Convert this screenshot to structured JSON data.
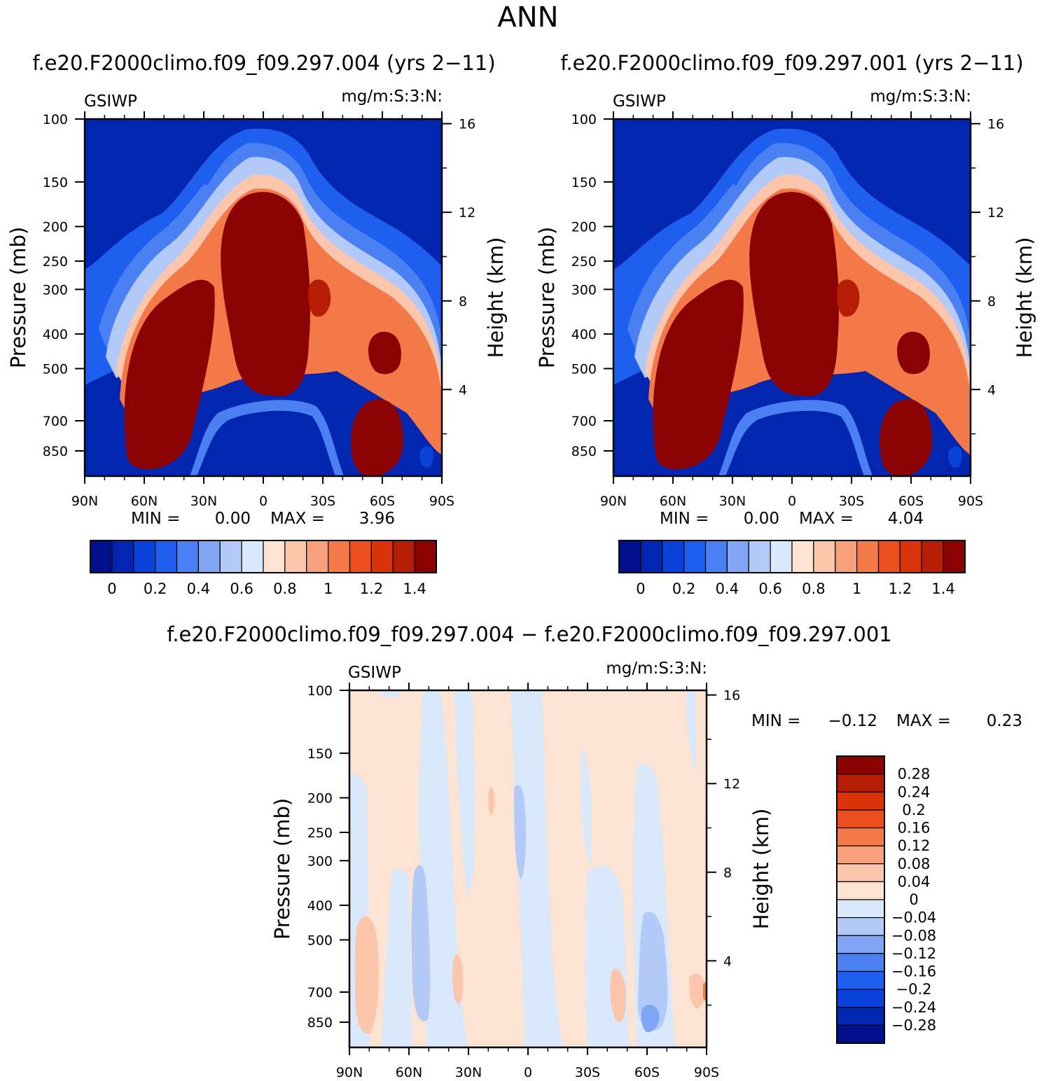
{
  "figure": {
    "title": "ANN",
    "colors": {
      "abs_levels": [
        "#000f8c",
        "#0326b1",
        "#0a42da",
        "#1f5ff0",
        "#4a80f2",
        "#7fa5f4",
        "#b3caf8",
        "#dae8fb",
        "#fde3d2",
        "#fcc6ad",
        "#f8a07c",
        "#f47948",
        "#ec4f1f",
        "#d93309",
        "#b51d05",
        "#8a0202"
      ],
      "diff_levels": [
        "#8a0202",
        "#b51d05",
        "#d93309",
        "#ec4f1f",
        "#f47948",
        "#f8a07c",
        "#fcc6ad",
        "#fde3d2",
        "#dae8fb",
        "#b3caf8",
        "#7fa5f4",
        "#4a80f2",
        "#1f5ff0",
        "#0a42da",
        "#0326b1",
        "#000f8c"
      ]
    }
  },
  "chart_data": [
    {
      "type": "heatmap",
      "id": "panel1",
      "title": "f.e20.F2000climo.f09_f09.297.004 (yrs 2−11)",
      "variable": "GSIWP",
      "units": "mg/m:S:3:N:",
      "ylabel": "Pressure (mb)",
      "ylabel_right": "Height (km)",
      "x_ticks": [
        "90N",
        "60N",
        "30N",
        "0",
        "30S",
        "60S",
        "90S"
      ],
      "y_ticks": [
        "100",
        "150",
        "200",
        "250",
        "300",
        "400",
        "500",
        "700",
        "850"
      ],
      "y_ticks_right": [
        "16",
        "12",
        "8",
        "4"
      ],
      "min_label": "MIN =",
      "min_value": "0.00",
      "max_label": "MAX =",
      "max_value": "3.96",
      "colorbar_ticks": [
        "0",
        "0.2",
        "0.4",
        "0.6",
        "0.8",
        "1",
        "1.2",
        "1.4"
      ]
    },
    {
      "type": "heatmap",
      "id": "panel2",
      "title": "f.e20.F2000climo.f09_f09.297.001 (yrs 2−11)",
      "variable": "GSIWP",
      "units": "mg/m:S:3:N:",
      "ylabel": "Pressure (mb)",
      "ylabel_right": "Height (km)",
      "x_ticks": [
        "90N",
        "60N",
        "30N",
        "0",
        "30S",
        "60S",
        "90S"
      ],
      "y_ticks": [
        "100",
        "150",
        "200",
        "250",
        "300",
        "400",
        "500",
        "700",
        "850"
      ],
      "y_ticks_right": [
        "16",
        "12",
        "8",
        "4"
      ],
      "min_label": "MIN =",
      "min_value": "0.00",
      "max_label": "MAX =",
      "max_value": "4.04",
      "colorbar_ticks": [
        "0",
        "0.2",
        "0.4",
        "0.6",
        "0.8",
        "1",
        "1.2",
        "1.4"
      ]
    },
    {
      "type": "heatmap",
      "id": "diff",
      "title": "f.e20.F2000climo.f09_f09.297.004 − f.e20.F2000climo.f09_f09.297.001",
      "variable": "GSIWP",
      "units": "mg/m:S:3:N:",
      "ylabel": "Pressure (mb)",
      "ylabel_right": "Height (km)",
      "x_ticks": [
        "90N",
        "60N",
        "30N",
        "0",
        "30S",
        "60S",
        "90S"
      ],
      "y_ticks": [
        "100",
        "150",
        "200",
        "250",
        "300",
        "400",
        "500",
        "700",
        "850"
      ],
      "y_ticks_right": [
        "16",
        "12",
        "8",
        "4"
      ],
      "min_label": "MIN =",
      "min_value": "−0.12",
      "max_label": "MAX =",
      "max_value": "0.23",
      "colorbar_ticks": [
        "0.28",
        "0.24",
        "0.2",
        "0.16",
        "0.12",
        "0.08",
        "0.04",
        "0",
        "−0.04",
        "−0.08",
        "−0.12",
        "−0.16",
        "−0.2",
        "−0.24",
        "−0.28"
      ]
    }
  ]
}
